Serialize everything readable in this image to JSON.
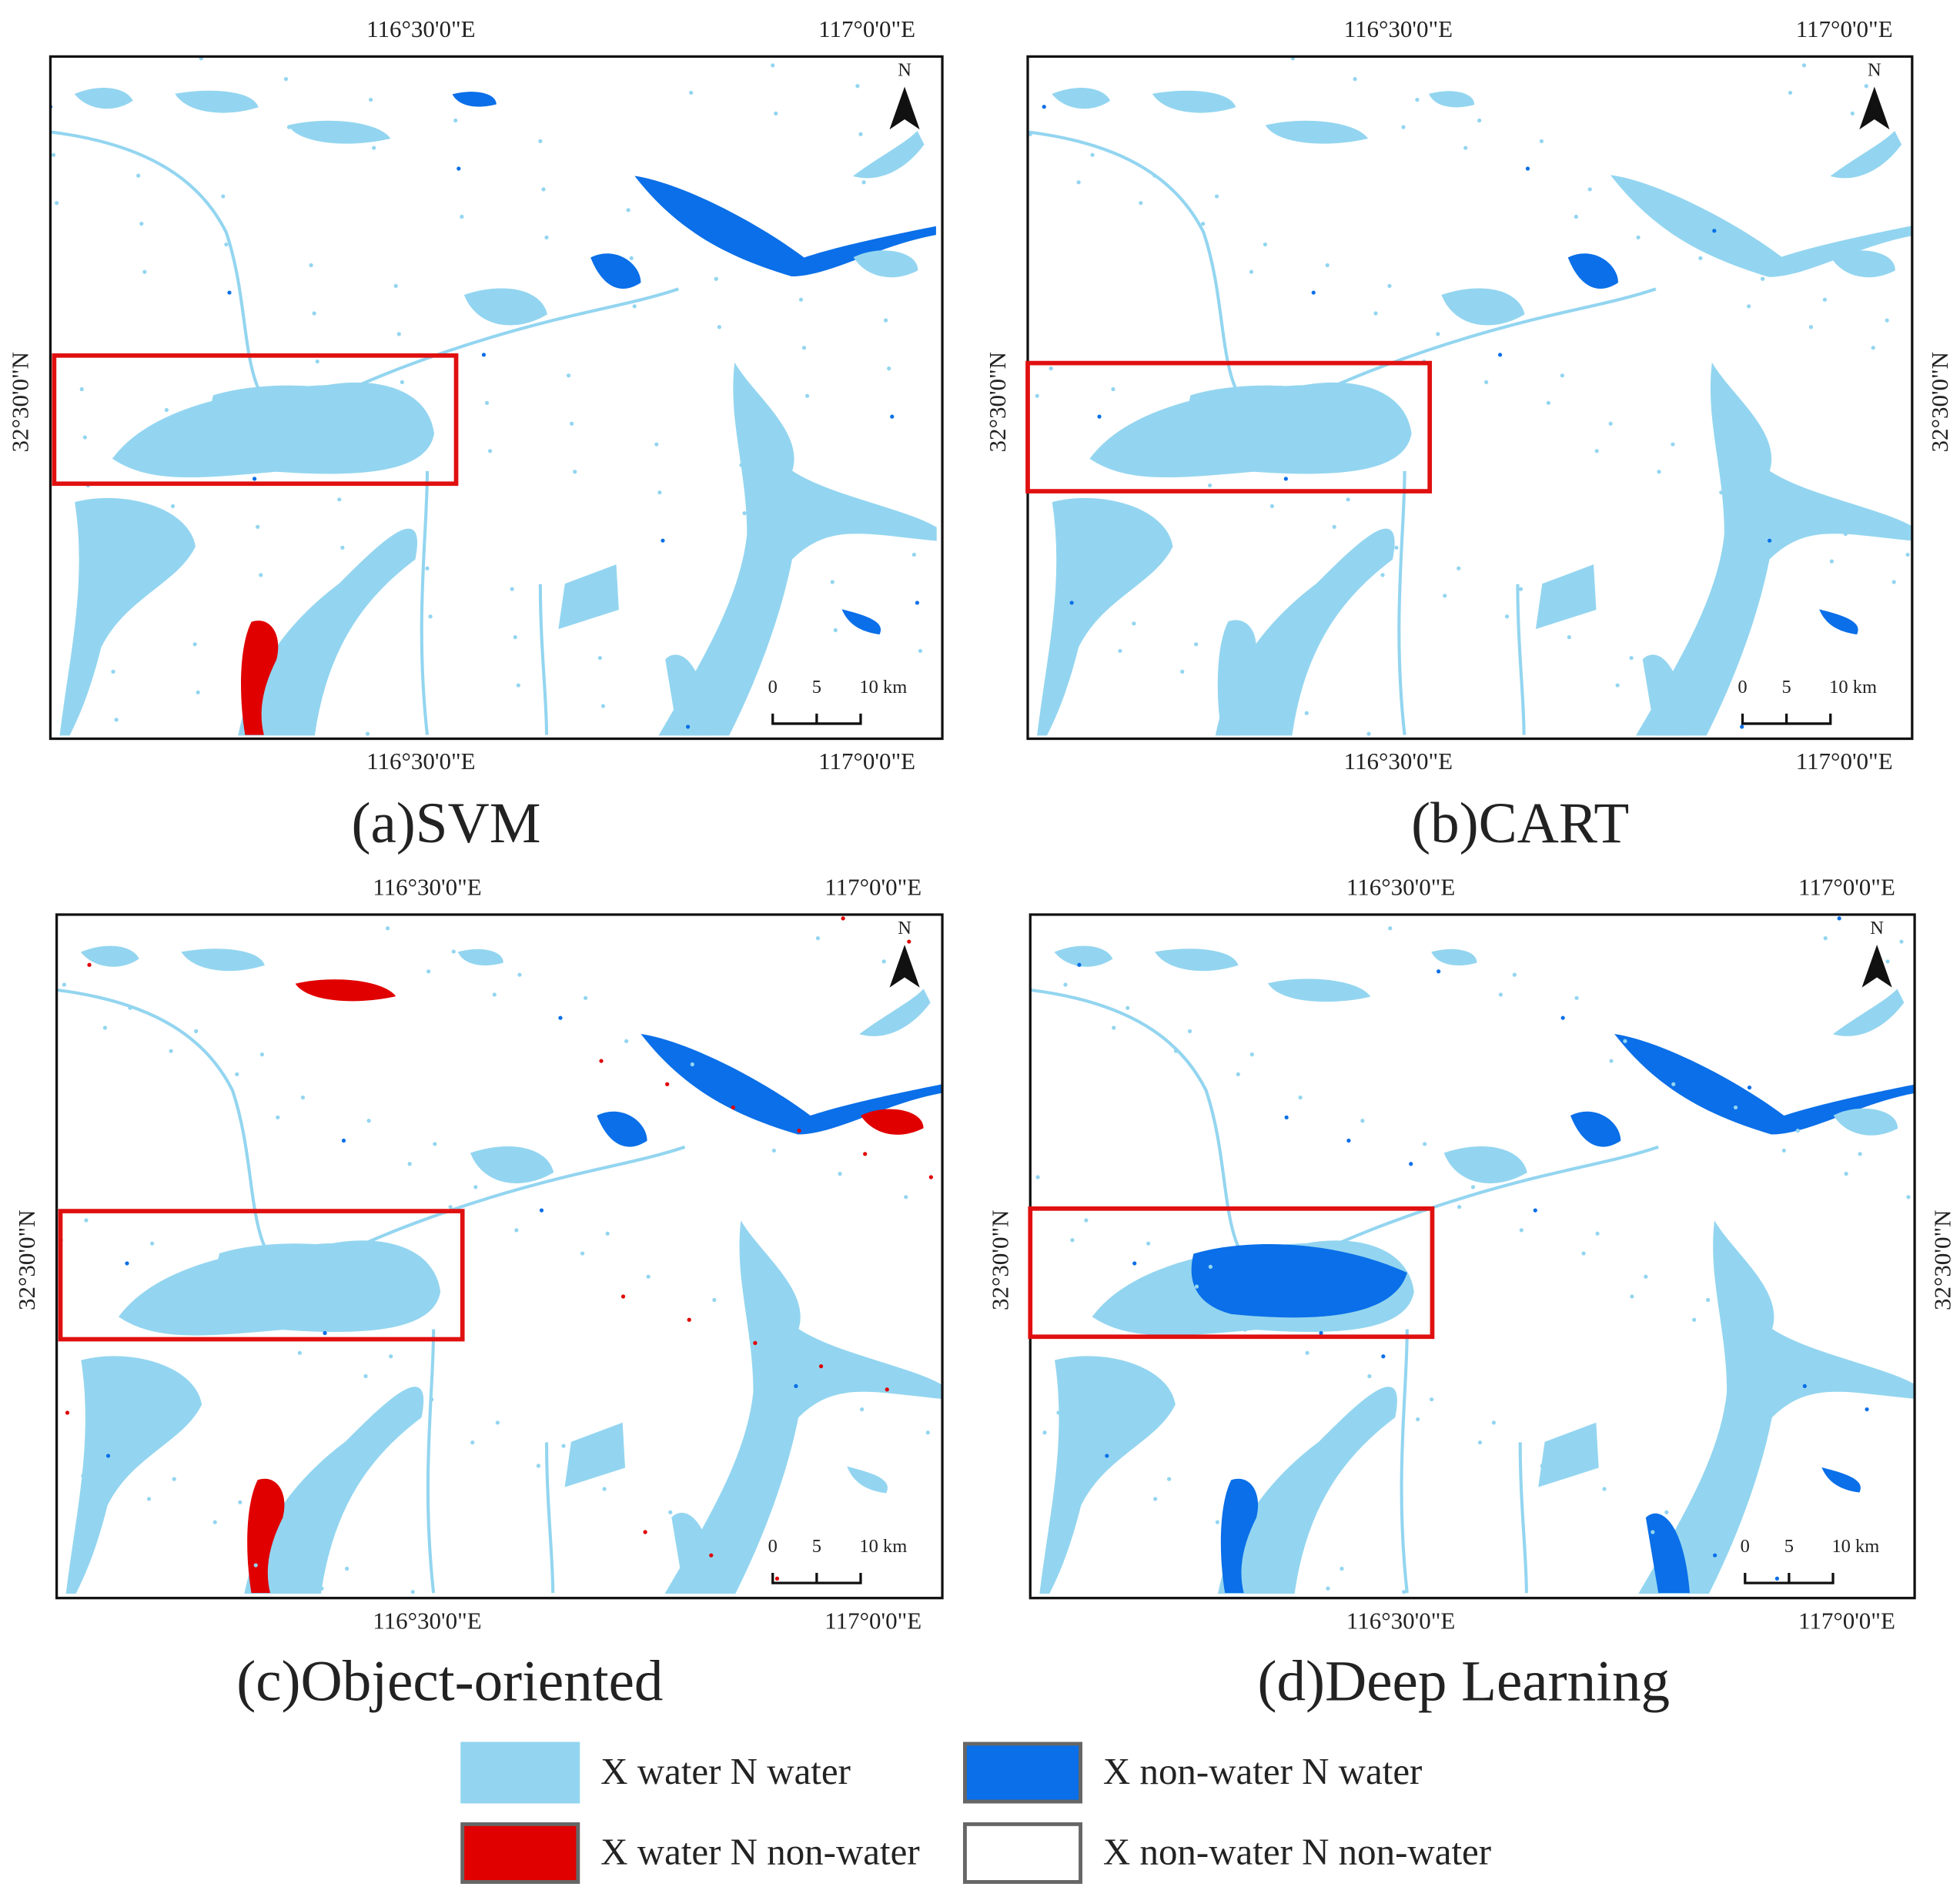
{
  "panels": [
    {
      "caption": "(a)SVM",
      "lon_labels": [
        "116°30'0\"E",
        "117°0'0\"E"
      ],
      "lat_label": "32°30'0\"N",
      "north": "N",
      "scale_labels": [
        "0",
        "5",
        "10 km"
      ]
    },
    {
      "caption": "(b)CART",
      "lon_labels": [
        "116°30'0\"E",
        "117°0'0\"E"
      ],
      "lat_label": "32°30'0\"N",
      "north": "N",
      "scale_labels": [
        "0",
        "5",
        "10 km"
      ]
    },
    {
      "caption": "(c)Object-oriented",
      "lon_labels": [
        "116°30'0\"E",
        "117°0'0\"E"
      ],
      "lat_label": "32°30'0\"N",
      "north": "N",
      "scale_labels": [
        "0",
        "5",
        "10 km"
      ]
    },
    {
      "caption": "(d)Deep Learning",
      "lon_labels": [
        "116°30'0\"E",
        "117°0'0\"E"
      ],
      "lat_label": "32°30'0\"N",
      "north": "N",
      "scale_labels": [
        "0",
        "5",
        "10 km"
      ]
    }
  ],
  "legend": [
    {
      "label": "X water N water",
      "color": "#93d5f0"
    },
    {
      "label": "X non-water N water",
      "color": "#0a6fe8"
    },
    {
      "label": "X water N non-water",
      "color": "#e00000"
    },
    {
      "label": "X non-water N non-water",
      "color": "#ffffff"
    }
  ]
}
